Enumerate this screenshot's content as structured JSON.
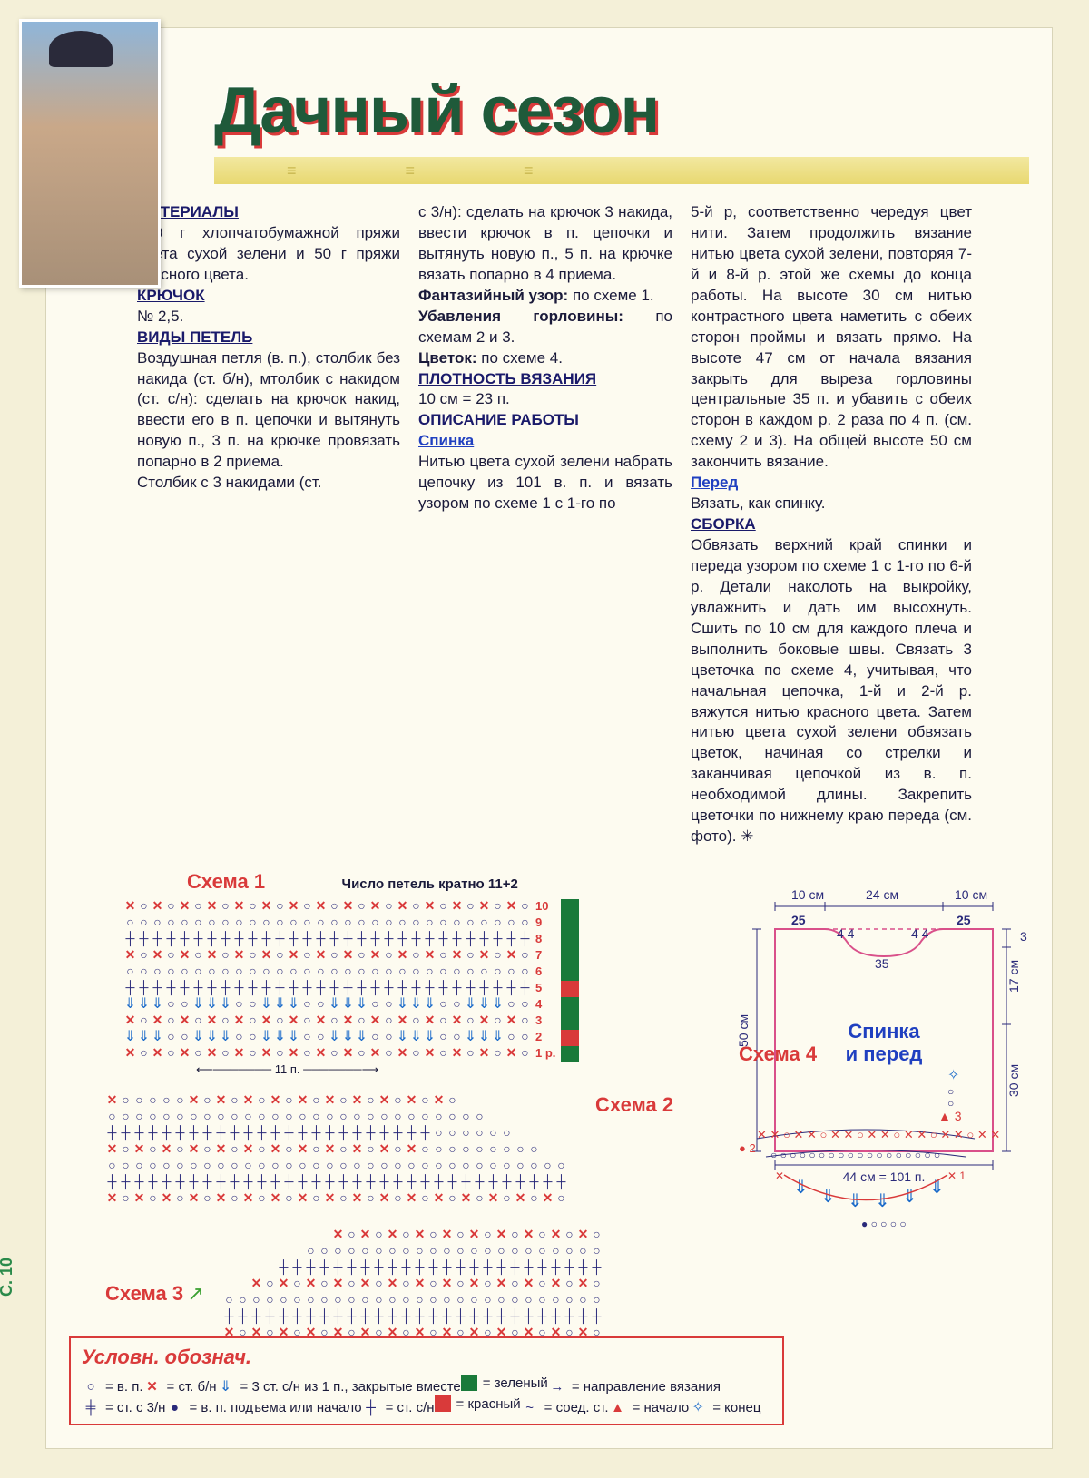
{
  "title": "Дачный сезон",
  "page_number": "С. 10",
  "headers": {
    "materials": "МАТЕРИАЛЫ",
    "hook": "КРЮЧОК",
    "stitches": "ВИДЫ ПЕТЕЛЬ",
    "gauge": "ПЛОТНОСТЬ ВЯЗАНИЯ",
    "work": "ОПИСАНИЕ РАБОТЫ",
    "back": "Спинка",
    "front": "Перед",
    "assembly": "СБОРКА"
  },
  "col1": {
    "materials_text": "250 г хлопчатобумажной пряжи цвета сухой зелени и 50 г пряжи красного цвета.",
    "hook_text": "№ 2,5.",
    "stitches_text": "Воздушная петля (в. п.), столбик без накида (ст. б/н), мтолбик с накидом (ст. с/н): сделать на крючок накид, ввести его в п. цепочки и вытянуть новую п., 3 п. на крючке провязать попарно в 2 приема.",
    "stitches_text2": "Столбик с 3 накидами (ст."
  },
  "col2": {
    "p1": "с 3/н): сделать на крючок 3 накида, ввести крючок в п. цепочки и вытянуть новую п., 5 п. на крючке вязать попарно в 4 приема.",
    "p2a": "Фантазийный узор:",
    "p2b": " по схеме 1.",
    "p3a": "Убавления горловины:",
    "p3b": " по схемам 2 и 3.",
    "p4a": "Цветок:",
    "p4b": " по схеме 4.",
    "gauge_text": "10 см = 23 п.",
    "back_text": "Нитью цвета сухой зелени набрать цепочку из 101 в. п. и вязать узором по схеме 1 с 1-го по"
  },
  "col3": {
    "p1": "5-й р, соответственно чередуя цвет нити. Затем продолжить вязание нитью цвета сухой зелени, повторяя 7-й и 8-й р. этой же схемы до конца работы. На высоте 30 см нитью контрастного цвета наметить с обеих сторон проймы и вязать прямо. На высоте 47 см от начала вязания закрыть для выреза горловины центральные 35 п. и убавить с обеих сторон в каждом р. 2 раза по 4 п. (см. схему 2 и 3). На общей высоте 50 см закончить вязание.",
    "front_text": "Вязать, как спинку.",
    "assembly_text": "Обвязать верхний край спинки и переда узором по схеме 1 с 1-го по 6-й р. Детали наколоть на выкройку, увлажнить и дать им высохнуть. Сшить по 10 см для каждого плеча и выполнить боковые швы. Связать 3 цветочка по схеме 4, учитывая, что начальная цепочка, 1-й и 2-й р. вяжутся нитью красного цвета. Затем нитью цвета сухой зелени обвязать цветок, начиная со стрелки и заканчивая цепочкой из в. п. необходимой длины. Закрепить цветочки по нижнему краю переда (см. фото). ✳"
  },
  "schemes": {
    "s1": "Схема 1",
    "s1_note": "Число петель кратно 11+2",
    "s1_repeat": "11 п.",
    "s2": "Схема 2",
    "s3": "Схема 3",
    "s4": "Схема 4",
    "rows": [
      "10",
      "9",
      "8",
      "7",
      "6",
      "5",
      "4",
      "3",
      "2",
      "1 р."
    ],
    "colorbar": [
      {
        "h": 90,
        "c": "#1a7a3a"
      },
      {
        "h": 18,
        "c": "#d93a3a"
      },
      {
        "h": 36,
        "c": "#1a7a3a"
      },
      {
        "h": 18,
        "c": "#d93a3a"
      },
      {
        "h": 18,
        "c": "#1a7a3a"
      }
    ]
  },
  "diagram": {
    "top_labels": [
      "10 см",
      "24 см",
      "10 см"
    ],
    "inner_top": [
      "25",
      "4 4",
      "4 4",
      "25"
    ],
    "neck": "35",
    "center": "Спинка\nи перед",
    "left": "50 см",
    "right_top": "3",
    "right_mid": "17 см",
    "right_bot": "30 см",
    "bottom": "44 см = 101 п.",
    "colors": {
      "outline": "#d9508a",
      "dims": "#2a2a7a",
      "label": "#2040c0"
    }
  },
  "legend": {
    "title": "Условн. обознач.",
    "items": [
      {
        "sym": "○",
        "cls": "o",
        "text": "= в. п."
      },
      {
        "sym": "✕",
        "cls": "x",
        "text": "= ст. б/н"
      },
      {
        "sym": "⇓",
        "cls": "fan",
        "text": "= 3 ст. с/н из 1 п., закрытые вместе"
      },
      {
        "sym": "■",
        "cls": "sq-g",
        "text": "= зеленый",
        "square": true
      },
      {
        "sym": "→",
        "cls": "o",
        "text": "= направление вязания"
      },
      {
        "sym": "╪",
        "cls": "o",
        "text": "= ст. с 3/н"
      },
      {
        "sym": "●",
        "cls": "o",
        "text": "= в. п. подъема или начало"
      },
      {
        "sym": "┼",
        "cls": "o",
        "text": "= ст. с/н"
      },
      {
        "sym": "■",
        "cls": "sq-r",
        "text": "= красный",
        "square": true
      },
      {
        "sym": "~",
        "cls": "o",
        "text": "= соед. ст."
      },
      {
        "sym": "▲",
        "cls": "x",
        "text": "= начало"
      },
      {
        "sym": "✧",
        "cls": "fan",
        "text": "= конец"
      }
    ]
  }
}
